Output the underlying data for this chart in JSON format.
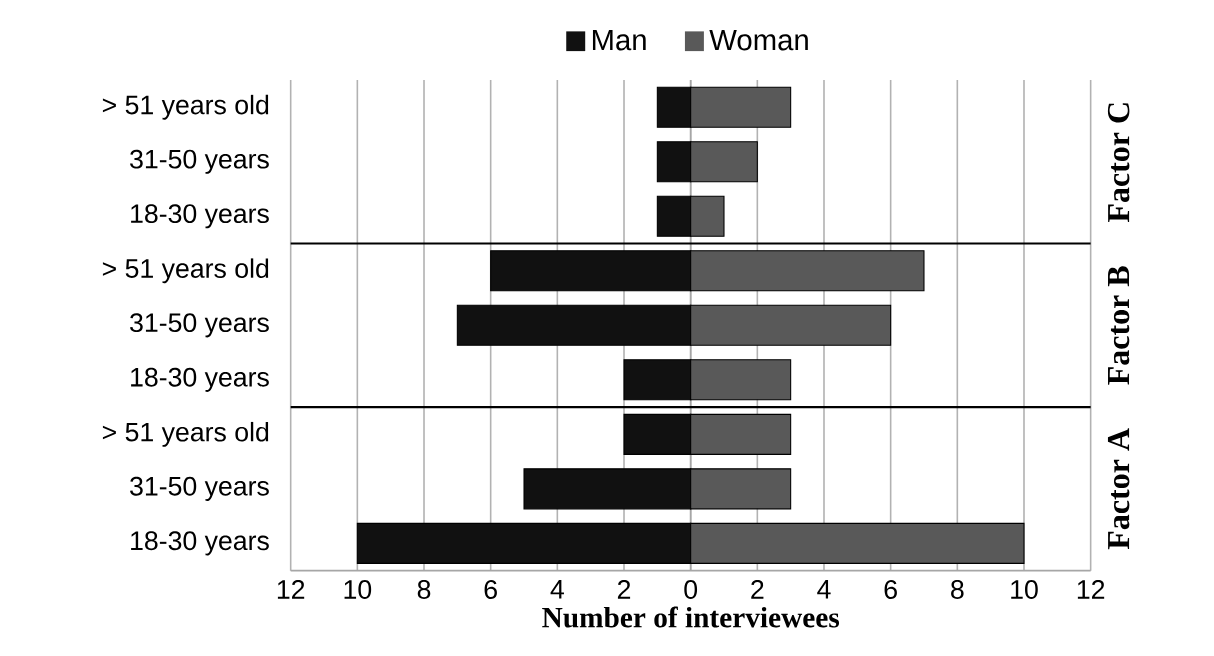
{
  "chart_data": {
    "type": "bar",
    "orientation": "horizontal",
    "stacked": true,
    "xlabel": "Number of interviewees",
    "categories": [
      "> 51 years old",
      "31-50 years",
      "18-30 years",
      "> 51 years old",
      "31-50 years",
      "18-30 years",
      "> 51 years old",
      "31-50 years",
      "18-30 years"
    ],
    "series": [
      {
        "name": "Man",
        "color": "#111111",
        "values": [
          -1,
          -1,
          -1,
          -6,
          -7,
          -2,
          -2,
          -5,
          -10
        ]
      },
      {
        "name": "Woman",
        "color": "#595959",
        "values": [
          3,
          2,
          1,
          7,
          6,
          3,
          3,
          3,
          10
        ]
      }
    ],
    "xlim": [
      -12,
      12
    ],
    "xticks": [
      {
        "value": -12,
        "label": "12"
      },
      {
        "value": -10,
        "label": "10"
      },
      {
        "value": -8,
        "label": "8"
      },
      {
        "value": -6,
        "label": "6"
      },
      {
        "value": -4,
        "label": "4"
      },
      {
        "value": -2,
        "label": "2"
      },
      0,
      2,
      4,
      6,
      8,
      10,
      12
    ],
    "grid": "x",
    "legend": "top",
    "annotations": [
      "Factor C",
      "Factor B",
      "Factor A"
    ]
  }
}
